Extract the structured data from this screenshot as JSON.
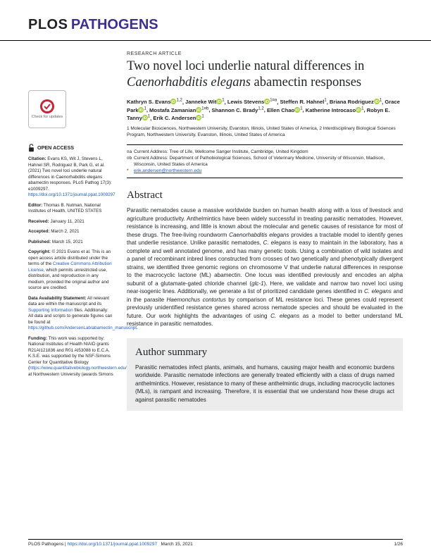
{
  "journal": {
    "plos": "PLOS",
    "pathogens": "PATHOGENS"
  },
  "article": {
    "kicker": "RESEARCH ARTICLE",
    "title_a": "Two novel loci underlie natural differences in ",
    "title_b": "Caenorhabditis elegans",
    "title_c": " abamectin responses"
  },
  "authors": [
    {
      "name": "Kathryn S. Evans",
      "sup": "1,2",
      "orcid": true
    },
    {
      "name": "Janneke Wit",
      "sup": "1",
      "orcid": true
    },
    {
      "name": "Lewis Stevens",
      "sup": "1¤a",
      "orcid": true
    },
    {
      "name": "Steffen R. Hahnel",
      "sup": "1",
      "orcid": false
    },
    {
      "name": "Briana Rodriguez",
      "sup": "1",
      "orcid": true
    },
    {
      "name": "Grace Park",
      "sup": "1",
      "orcid": true
    },
    {
      "name": "Mostafa Zamanian",
      "sup": "1¤b",
      "orcid": true
    },
    {
      "name": "Shannon C. Brady",
      "sup": "1,2",
      "orcid": false
    },
    {
      "name": "Ellen Chao",
      "sup": "1",
      "orcid": true
    },
    {
      "name": "Katherine Introcaso",
      "sup": "1",
      "orcid": true
    },
    {
      "name": "Robyn E. Tanny",
      "sup": "1",
      "orcid": true
    },
    {
      "name": "Erik C. Andersen",
      "sup": "1",
      "orcid": true
    }
  ],
  "affiliations": [
    "1 Molecular Biosciences, Northwestern University, Evanston, Illinois, United States of America,",
    "2 Interdisciplinary Biological Sciences Program, Northwestern University, Evanston, Illinois, United States of America"
  ],
  "notes": {
    "a": "Current Address: Tree of Life, Wellcome Sanger Institute, Cambridge, United Kingdom",
    "b": "Current Address: Department of Pathobiological Sciences, School of Veterinary Medicine, University of Wisconsin, Madison, Wisconsin, United States of America",
    "email": "erik.andersen@northwestern.edu"
  },
  "abstract_heading": "Abstract",
  "abstract": "Parasitic nematodes cause a massive worldwide burden on human health along with a loss of livestock and agriculture productivity. Anthelmintics have been widely successful in treating parasitic nematodes. However, resistance is increasing, and little is known about the molecular and genetic causes of resistance for most of these drugs. The free-living roundworm Caenorhabditis elegans provides a tractable model to identify genes that underlie resistance. Unlike parasitic nematodes, C. elegans is easy to maintain in the laboratory, has a complete and well annotated genome, and has many genetic tools. Using a combination of wild isolates and a panel of recombinant inbred lines constructed from crosses of two genetically and phenotypically divergent strains, we identified three genomic regions on chromosome V that underlie natural differences in response to the macrocyclic lactone (ML) abamectin. One locus was identified previously and encodes an alpha subunit of a glutamate-gated chloride channel (glc-1). Here, we validate and narrow two novel loci using near-isogenic lines. Additionally, we generate a list of prioritized candidate genes identified in C. elegans and in the parasite Haemonchus contortus by comparison of ML resistance loci. These genes could represent previously unidentified resistance genes shared across nematode species and should be evaluated in the future. Our work highlights the advantages of using C. elegans as a model to better understand ML resistance in parasitic nematodes.",
  "summary_heading": "Author summary",
  "summary": "Parasitic nematodes infect plants, animals, and humans, causing major health and economic burdens worldwide. Parasitic nematode infections are generally treated efficiently with a class of drugs named anthelmintics. However, resistance to many of these anthelmintic drugs, including macrocyclic lactones (MLs), is rampant and increasing. Therefore, it is essential that we understand how these drugs act against parasitic nematodes",
  "sidebar": {
    "open_access": "OPEN ACCESS",
    "citation_label": "Citation:",
    "citation": " Evans KS, Wit J, Stevens L, Hahnel SR, Rodriguez B, Park G, et al. (2021) Two novel loci underlie natural differences in Caenorhabditis elegans abamectin responses. PLoS Pathog 17(3): e1009297. ",
    "citation_link": "https://doi.org/10.1371/journal.ppat.1009297",
    "editor_label": "Editor:",
    "editor": " Thomas B. Nutman, National Institutes of Health, UNITED STATES",
    "received_label": "Received:",
    "received": " January 11, 2021",
    "accepted_label": "Accepted:",
    "accepted": " March 2, 2021",
    "published_label": "Published:",
    "published": " March 15, 2021",
    "copyright_label": "Copyright:",
    "copyright_a": " © 2021 Evans et al. This is an open access article distributed under the terms of the ",
    "copyright_link": "Creative Commons Attribution License",
    "copyright_b": ", which permits unrestricted use, distribution, and reproduction in any medium, provided the original author and source are credited.",
    "data_label": "Data Availability Statement:",
    "data_a": " All relevant data are within the manuscript and its ",
    "data_link": "Supporting Information",
    "data_b": " files. Additionally: All data and scripts to generate figures can be found at ",
    "data_link2": "https://github.com/AndersenLab/abamectin_manuscript",
    "data_c": ".",
    "funding_label": "Funding:",
    "funding_a": " This work was supported by: National Institutes of Health NIAID grants R21AI121836 and R01 AI53088 to E.C.A. K.S.E. was supported by the NSF-Simons Center for Quantitative Biology (",
    "funding_link": "https://www.quantitativebiology.northwestern.edu/",
    "funding_b": ") at Northwestern University (awards Simons",
    "check_updates": "Check for updates"
  },
  "footer": {
    "journal": "PLOS Pathogens",
    "sep": " | ",
    "doi": "https://doi.org/10.1371/journal.ppat.1009297",
    "date": "March 15, 2021",
    "page": "1/26"
  },
  "colors": {
    "brand": "#3d2f8f",
    "link": "#1a57c4",
    "orcid": "#a6ce39",
    "text": "#202428",
    "summary_bg": "#ececec"
  }
}
